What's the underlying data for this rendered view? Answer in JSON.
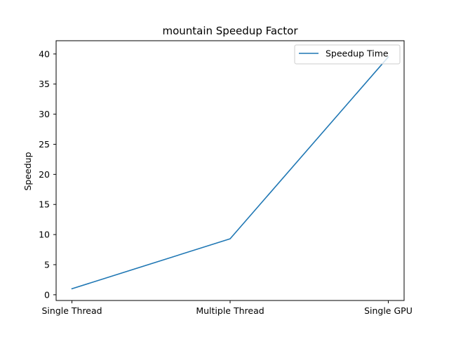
{
  "chart_data": {
    "type": "line",
    "title": "mountain Speedup Factor",
    "xlabel": "",
    "ylabel": "Speedup",
    "categories": [
      "Single Thread",
      "Multiple Thread",
      "Single GPU"
    ],
    "series": [
      {
        "name": "Speedup Time",
        "values": [
          1.0,
          9.3,
          39.5
        ],
        "color": "#1f77b4"
      }
    ],
    "ylim": [
      -0.95,
      42.2
    ],
    "yticks": [
      0,
      5,
      10,
      15,
      20,
      25,
      30,
      35,
      40
    ],
    "grid": false,
    "legend": "top-right"
  }
}
